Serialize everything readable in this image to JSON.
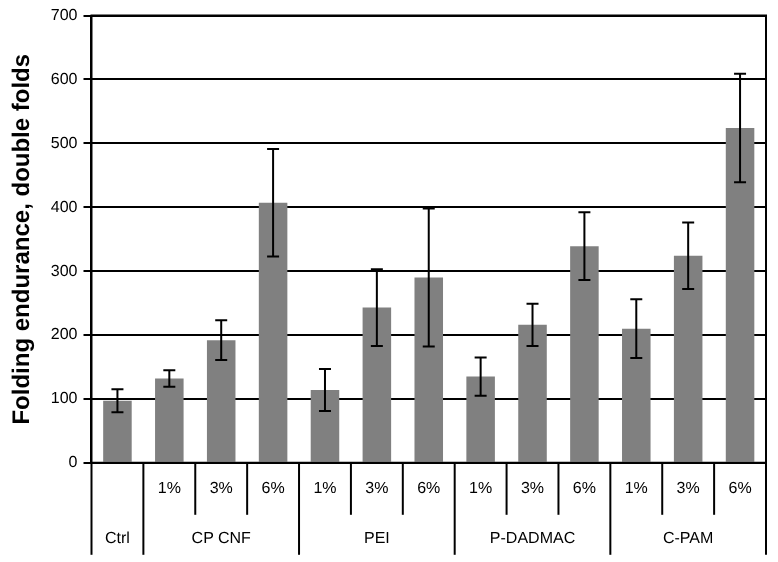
{
  "chart_data": {
    "type": "bar",
    "ylabel": "Folding endurance, double folds",
    "categories": [
      null,
      "1%",
      "3%",
      "6%",
      "1%",
      "3%",
      "6%",
      "1%",
      "3%",
      "6%",
      "1%",
      "3%",
      "6%"
    ],
    "values": [
      97,
      132,
      192,
      407,
      114,
      243,
      290,
      135,
      216,
      339,
      210,
      324,
      524
    ],
    "errors": [
      18,
      13,
      31,
      84,
      33,
      60,
      108,
      30,
      33,
      53,
      46,
      52,
      85
    ],
    "color": "#808080",
    "annotations": [
      "Ctrl",
      "CP CNF",
      "PEI",
      "P-DADMAC",
      "C-PAM"
    ],
    "ylim": [
      0,
      700
    ],
    "yticks": [
      0,
      100,
      200,
      300,
      400,
      500,
      600,
      700
    ],
    "grid": "y"
  }
}
